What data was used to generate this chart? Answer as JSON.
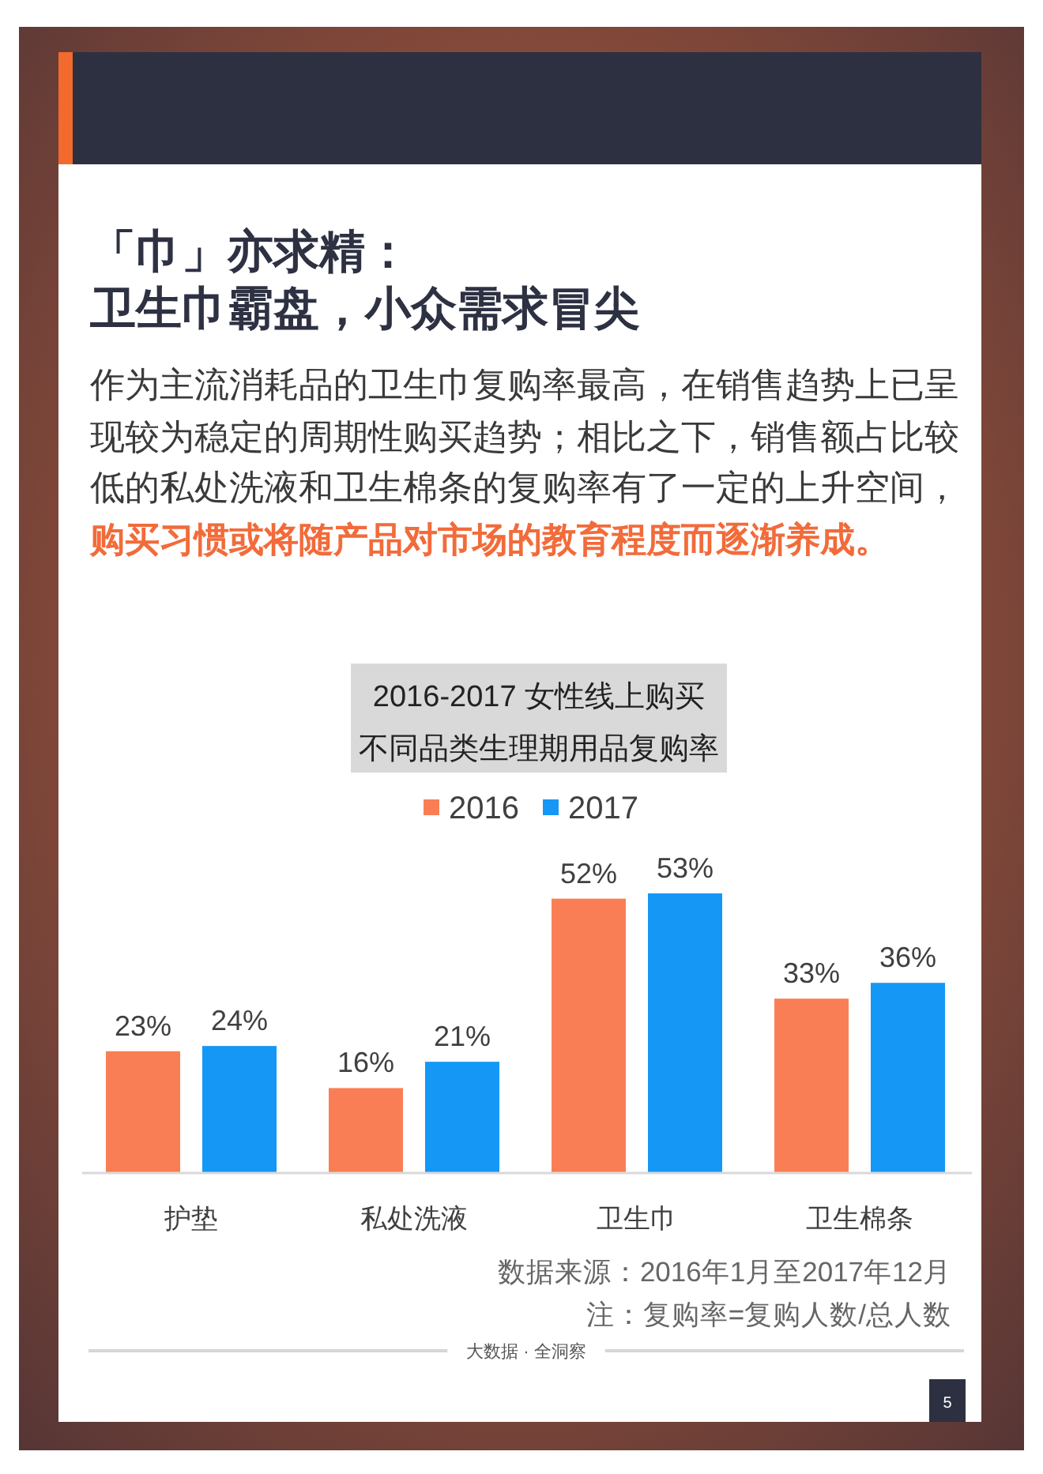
{
  "chart_data": {
    "type": "bar",
    "title": "2016-2017 女性线上购买不同品类生理期用品复购率",
    "categories": [
      "护垫",
      "私处洗液",
      "卫生巾",
      "卫生棉条"
    ],
    "series": [
      {
        "name": "2016",
        "color": "#fa7e55",
        "values": [
          23,
          16,
          52,
          33
        ],
        "value_labels": [
          "23%",
          "16%",
          "52%",
          "33%"
        ]
      },
      {
        "name": "2017",
        "color": "#1597f5",
        "values": [
          24,
          21,
          53,
          36
        ],
        "value_labels": [
          "24%",
          "21%",
          "53%",
          "36%"
        ]
      }
    ],
    "legend": "top",
    "annotations": [
      "「巾」亦求精：",
      "卫生巾霸盘，小众需求冒尖",
      "作为主流消耗品的卫生巾复购率最高，在销售趋势上已呈现较为稳定的周期性购买趋势；相比之下，销售额占比较低的私处洗液和卫生棉条的复购率有了一定的上升空间，",
      "购买习惯或将随产品对市场的教育程度而逐渐养成。",
      "数据来源：2016年1月至2017年12月",
      "注：复购率=复购人数/总人数",
      "大数据 · 全洞察",
      "5"
    ]
  }
}
